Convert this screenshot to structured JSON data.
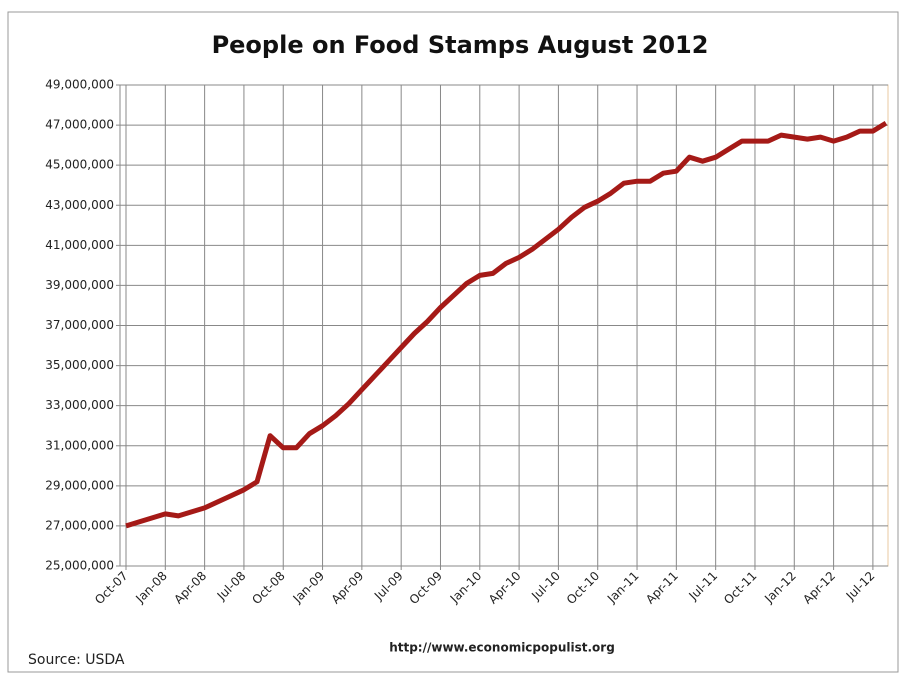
{
  "chart_data": {
    "type": "line",
    "title": "People on Food Stamps August 2012",
    "annotations": [
      "Source: USDA",
      "http://www.economicpopulist.org"
    ],
    "categories": [
      "Oct-07",
      null,
      null,
      "Jan-08",
      null,
      null,
      "Apr-08",
      null,
      null,
      "Jul-08",
      null,
      null,
      "Oct-08",
      null,
      null,
      "Jan-09",
      null,
      null,
      "Apr-09",
      null,
      null,
      "Jul-09",
      null,
      null,
      "Oct-09",
      null,
      null,
      "Jan-10",
      null,
      null,
      "Apr-10",
      null,
      null,
      "Jul-10",
      null,
      null,
      "Oct-10",
      null,
      null,
      "Jan-11",
      null,
      null,
      "Apr-11",
      null,
      null,
      "Jul-11",
      null,
      null,
      "Oct-11",
      null,
      null,
      "Jan-12",
      null,
      null,
      "Apr-12",
      null,
      null,
      "Jul-12",
      null
    ],
    "series": [
      {
        "name": "People on Food Stamps",
        "color": "#a51a17",
        "values": [
          27000000,
          27200000,
          27400000,
          27600000,
          27500000,
          27700000,
          27900000,
          28200000,
          28500000,
          28800000,
          29200000,
          31500000,
          30900000,
          30900000,
          31600000,
          32000000,
          32500000,
          33100000,
          33800000,
          34500000,
          35200000,
          35900000,
          36600000,
          37200000,
          37900000,
          38500000,
          39100000,
          39500000,
          39600000,
          40100000,
          40400000,
          40800000,
          41300000,
          41800000,
          42400000,
          42900000,
          43200000,
          43600000,
          44100000,
          44200000,
          44200000,
          44600000,
          44700000,
          45400000,
          45200000,
          45400000,
          45800000,
          46200000,
          46200000,
          46200000,
          46500000,
          46400000,
          46300000,
          46400000,
          46200000,
          46400000,
          46700000,
          46700000,
          47100000
        ]
      }
    ],
    "ylim": [
      25000000,
      49000000
    ],
    "yticks": [
      {
        "value": 25000000,
        "label": "25,000,000"
      },
      {
        "value": 27000000,
        "label": "27,000,000"
      },
      {
        "value": 29000000,
        "label": "29,000,000"
      },
      {
        "value": 31000000,
        "label": "31,000,000"
      },
      {
        "value": 33000000,
        "label": "33,000,000"
      },
      {
        "value": 35000000,
        "label": "35,000,000"
      },
      {
        "value": 37000000,
        "label": "37,000,000"
      },
      {
        "value": 39000000,
        "label": "39,000,000"
      },
      {
        "value": 41000000,
        "label": "41,000,000"
      },
      {
        "value": 43000000,
        "label": "43,000,000"
      },
      {
        "value": 45000000,
        "label": "45,000,000"
      },
      {
        "value": 47000000,
        "label": "47,000,000"
      },
      {
        "value": 49000000,
        "label": "49,000,000"
      }
    ],
    "grid": true
  }
}
